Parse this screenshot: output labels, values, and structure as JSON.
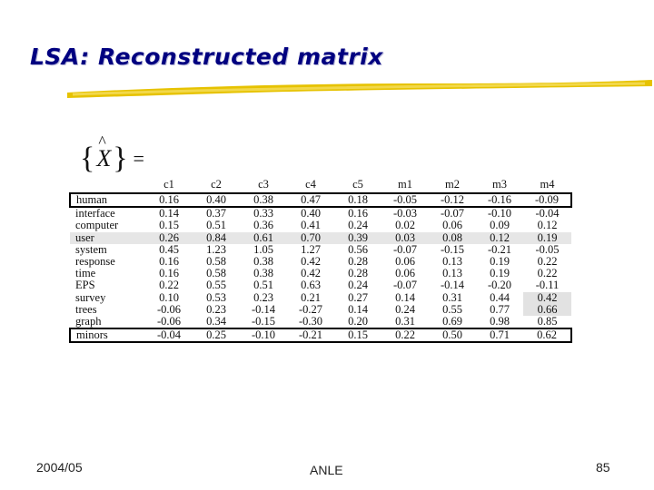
{
  "slide": {
    "title": "LSA: Reconstructed matrix",
    "formula": {
      "brace_open": "{",
      "symbol": "X",
      "hat": "^",
      "brace_close": "}",
      "equals": "="
    }
  },
  "matrix": {
    "columns": [
      "",
      "c1",
      "c2",
      "c3",
      "c4",
      "c5",
      "m1",
      "m2",
      "m3",
      "m4"
    ],
    "rows": [
      {
        "term": "human",
        "values": [
          "0.16",
          "0.40",
          "0.38",
          "0.47",
          "0.18",
          "-0.05",
          "-0.12",
          "-0.16",
          "-0.09"
        ],
        "boxed": true
      },
      {
        "term": "interface",
        "values": [
          "0.14",
          "0.37",
          "0.33",
          "0.40",
          "0.16",
          "-0.03",
          "-0.07",
          "-0.10",
          "-0.04"
        ]
      },
      {
        "term": "computer",
        "values": [
          "0.15",
          "0.51",
          "0.36",
          "0.41",
          "0.24",
          "0.02",
          "0.06",
          "0.09",
          "0.12"
        ]
      },
      {
        "term": "user",
        "values": [
          "0.26",
          "0.84",
          "0.61",
          "0.70",
          "0.39",
          "0.03",
          "0.08",
          "0.12",
          "0.19"
        ],
        "shaded": true
      },
      {
        "term": "system",
        "values": [
          "0.45",
          "1.23",
          "1.05",
          "1.27",
          "0.56",
          "-0.07",
          "-0.15",
          "-0.21",
          "-0.05"
        ]
      },
      {
        "term": "response",
        "values": [
          "0.16",
          "0.58",
          "0.38",
          "0.42",
          "0.28",
          "0.06",
          "0.13",
          "0.19",
          "0.22"
        ]
      },
      {
        "term": "time",
        "values": [
          "0.16",
          "0.58",
          "0.38",
          "0.42",
          "0.28",
          "0.06",
          "0.13",
          "0.19",
          "0.22"
        ]
      },
      {
        "term": "EPS",
        "values": [
          "0.22",
          "0.55",
          "0.51",
          "0.63",
          "0.24",
          "-0.07",
          "-0.14",
          "-0.20",
          "-0.11"
        ]
      },
      {
        "term": "survey",
        "values": [
          "0.10",
          "0.53",
          "0.23",
          "0.21",
          "0.27",
          "0.14",
          "0.31",
          "0.44",
          "0.42"
        ],
        "highlight_last": true
      },
      {
        "term": "trees",
        "values": [
          "-0.06",
          "0.23",
          "-0.14",
          "-0.27",
          "0.14",
          "0.24",
          "0.55",
          "0.77",
          "0.66"
        ],
        "highlight_last": true
      },
      {
        "term": "graph",
        "values": [
          "-0.06",
          "0.34",
          "-0.15",
          "-0.30",
          "0.20",
          "0.31",
          "0.69",
          "0.98",
          "0.85"
        ]
      },
      {
        "term": "minors",
        "values": [
          "-0.04",
          "0.25",
          "-0.10",
          "-0.21",
          "0.15",
          "0.22",
          "0.50",
          "0.71",
          "0.62"
        ],
        "boxed": true
      }
    ]
  },
  "footer": {
    "date": "2004/05",
    "center": "ANLE",
    "page": "85"
  },
  "colors": {
    "title": "#000080",
    "underline": "#e6c200",
    "shade": "#e6e6e6"
  }
}
